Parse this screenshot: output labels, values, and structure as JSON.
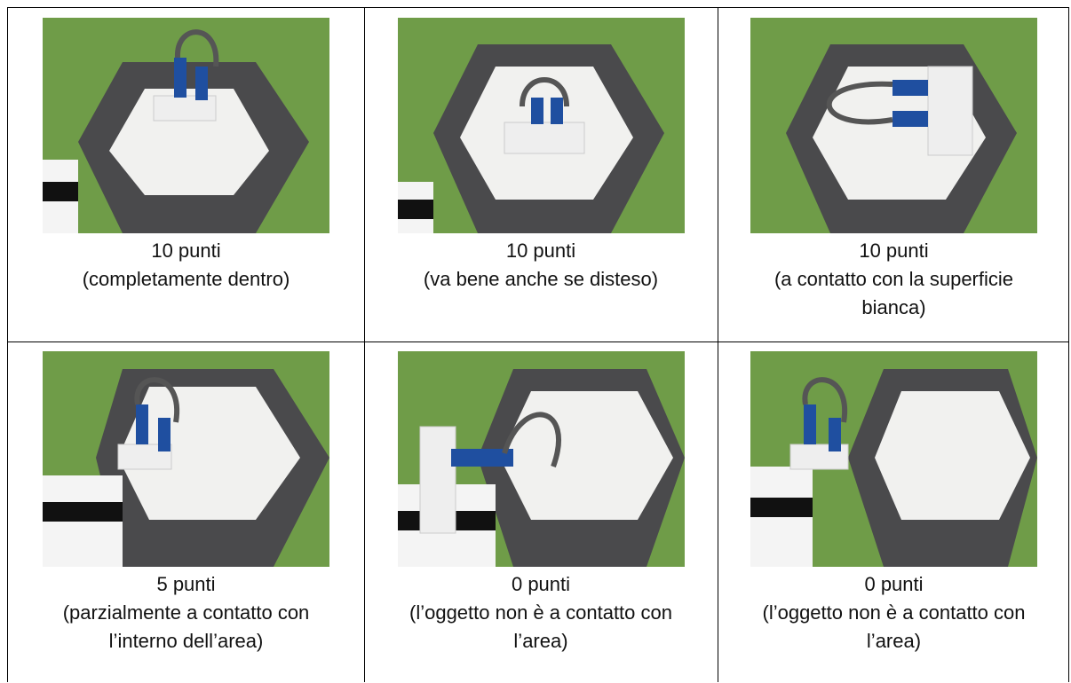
{
  "table": {
    "rows": [
      [
        {
          "points": "10 punti",
          "note": [
            "(completamente dentro)"
          ]
        },
        {
          "points": "10 punti",
          "note": [
            "(va bene anche se disteso)"
          ]
        },
        {
          "points": "10 punti",
          "note": [
            "(a contatto con la superficie",
            "bianca)"
          ]
        }
      ],
      [
        {
          "points": "5 punti",
          "note": [
            "(parzialmente a contatto con",
            "l’interno dell’area)"
          ]
        },
        {
          "points": "0 punti",
          "note": [
            "(l’oggetto non è a contatto con",
            "l’area)"
          ]
        },
        {
          "points": "0 punti",
          "note": [
            "(l’oggetto non è a contatto con",
            "l’area)"
          ]
        }
      ]
    ]
  }
}
